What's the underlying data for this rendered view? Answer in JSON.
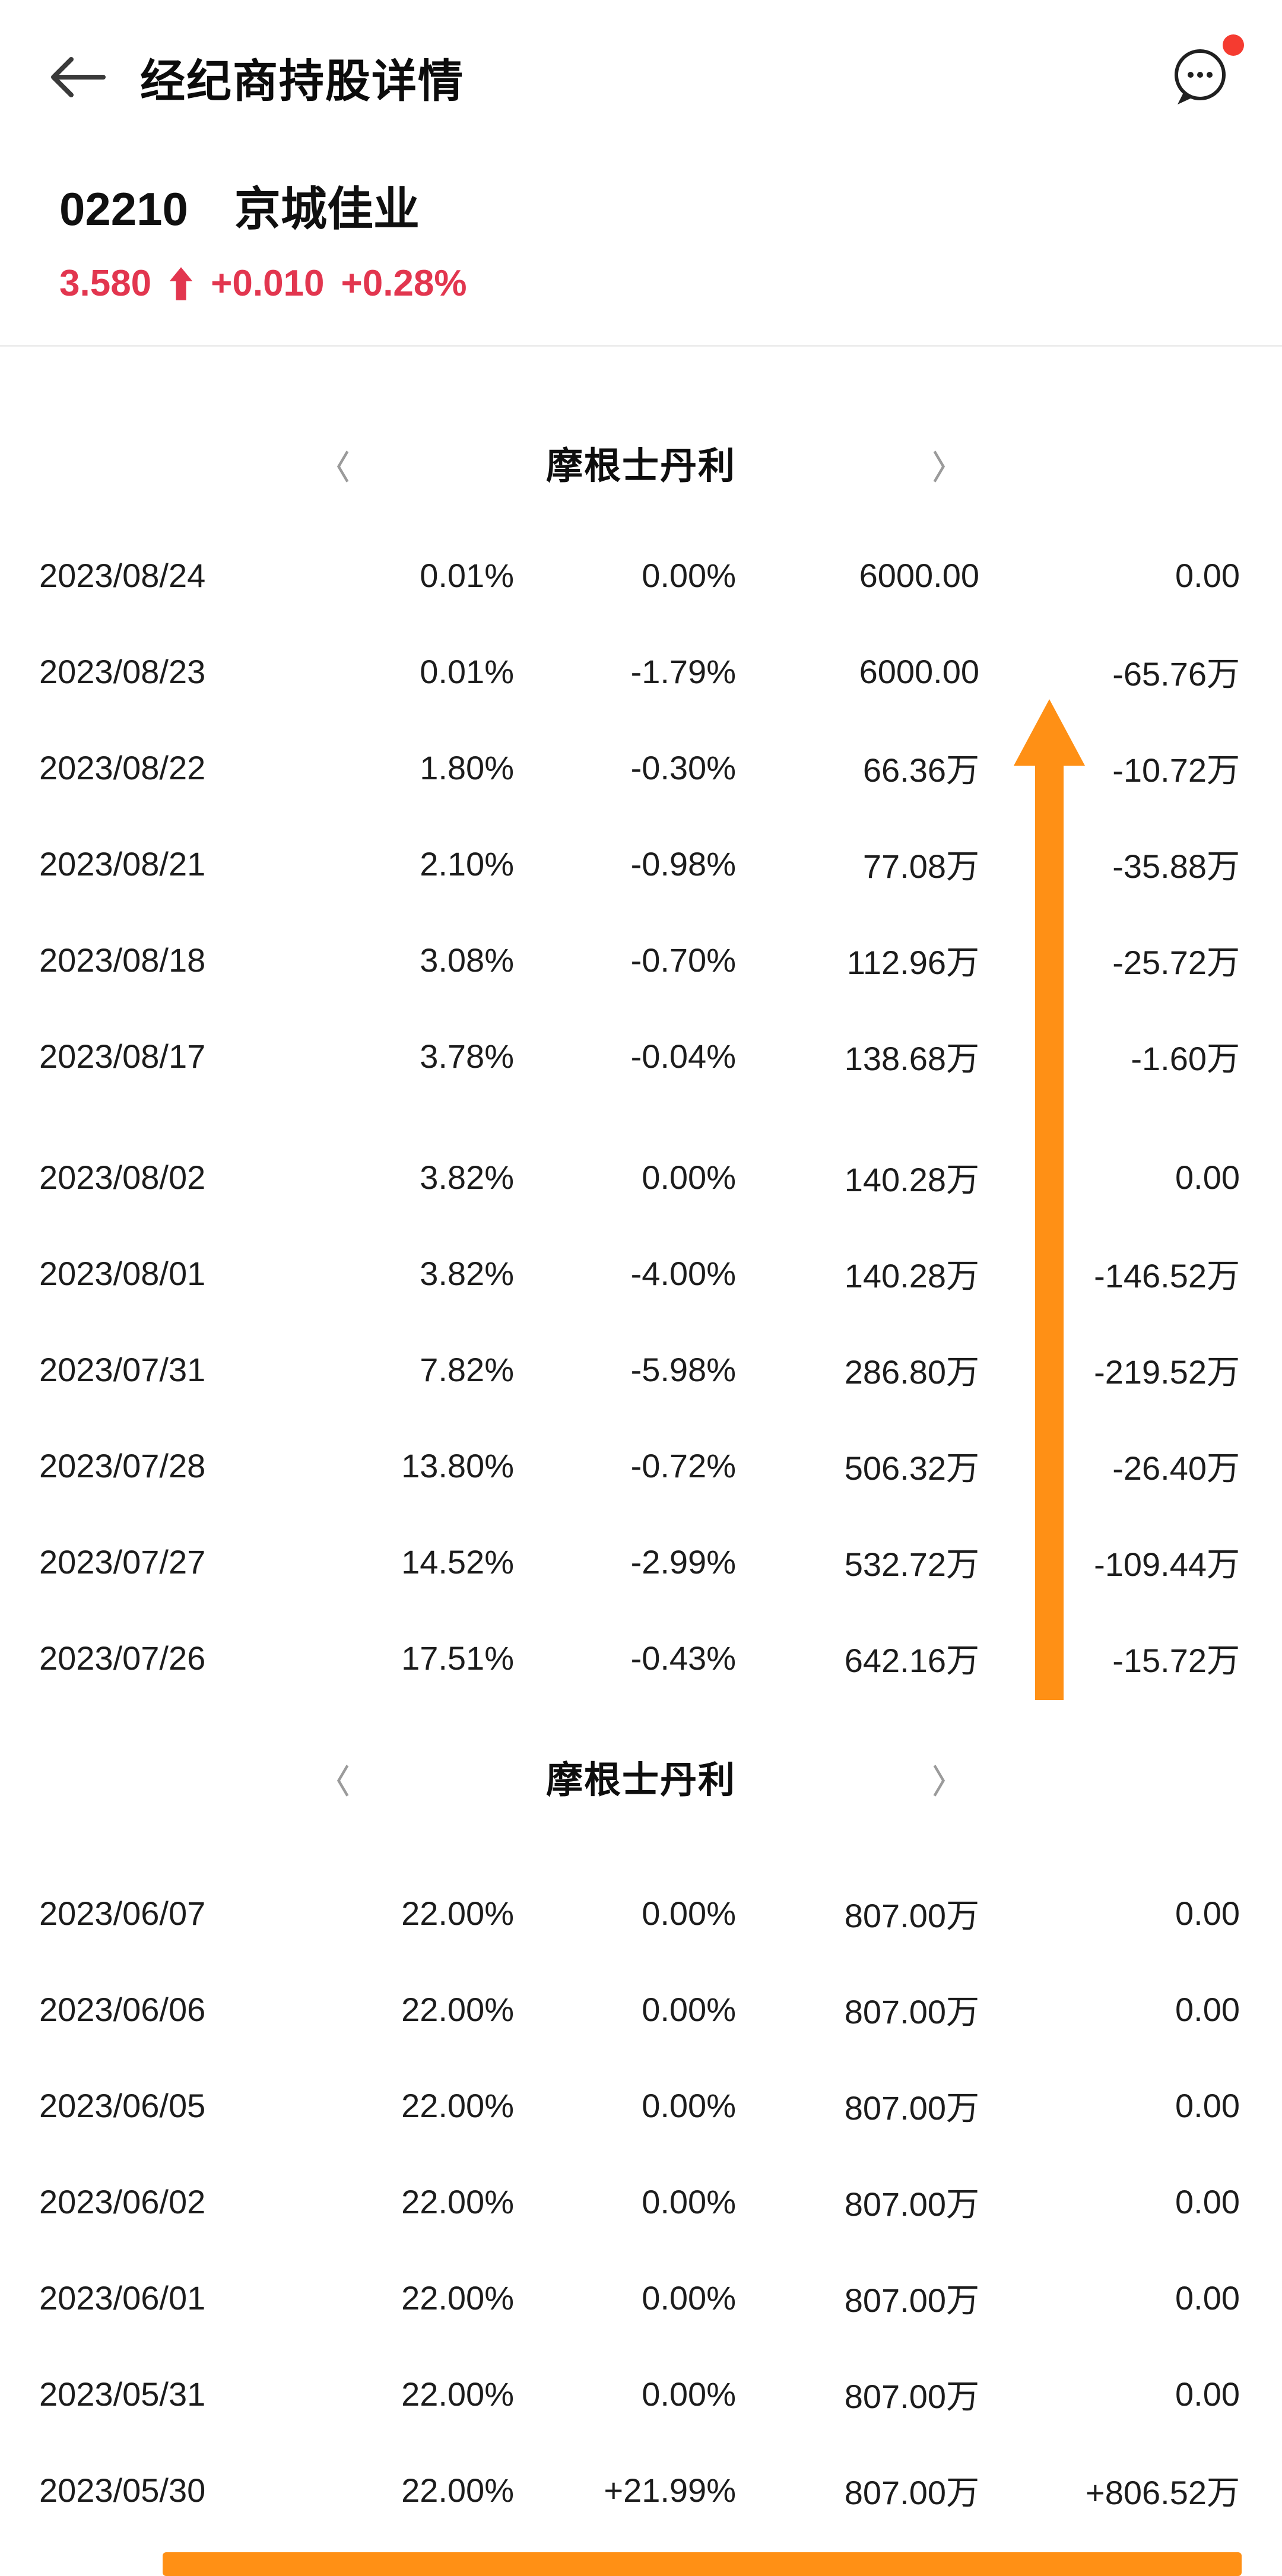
{
  "colors": {
    "accent-orange": "#FF9015",
    "quote-red": "#E2364F",
    "text-dark": "#1B1B1B",
    "chevron-gray": "#9B9B9B",
    "badge-red": "#F53B30"
  },
  "header": {
    "title": "经纪商持股详情"
  },
  "stock": {
    "code": "02210",
    "name": "京城佳业",
    "price": "3.580",
    "change": "+0.010",
    "change_pct": "+0.28%"
  },
  "icons": {
    "back": "back-arrow",
    "chat": "chat-bubble",
    "up": "up-arrow",
    "chevron_left": "chevron-left",
    "chevron_right": "chevron-right"
  },
  "sections": [
    {
      "broker": "摩根士丹利",
      "rows": [
        [
          "2023/08/24",
          "0.01%",
          "0.00%",
          "6000.00",
          "0.00"
        ],
        [
          "2023/08/23",
          "0.01%",
          "-1.79%",
          "6000.00",
          "-65.76万"
        ],
        [
          "2023/08/22",
          "1.80%",
          "-0.30%",
          "66.36万",
          "-10.72万"
        ],
        [
          "2023/08/21",
          "2.10%",
          "-0.98%",
          "77.08万",
          "-35.88万"
        ],
        [
          "2023/08/18",
          "3.08%",
          "-0.70%",
          "112.96万",
          "-25.72万"
        ],
        [
          "2023/08/17",
          "3.78%",
          "-0.04%",
          "138.68万",
          "-1.60万"
        ],
        [
          "2023/08/02",
          "3.82%",
          "0.00%",
          "140.28万",
          "0.00"
        ],
        [
          "2023/08/01",
          "3.82%",
          "-4.00%",
          "140.28万",
          "-146.52万"
        ],
        [
          "2023/07/31",
          "7.82%",
          "-5.98%",
          "286.80万",
          "-219.52万"
        ],
        [
          "2023/07/28",
          "13.80%",
          "-0.72%",
          "506.32万",
          "-26.40万"
        ],
        [
          "2023/07/27",
          "14.52%",
          "-2.99%",
          "532.72万",
          "-109.44万"
        ],
        [
          "2023/07/26",
          "17.51%",
          "-0.43%",
          "642.16万",
          "-15.72万"
        ]
      ]
    },
    {
      "broker": "摩根士丹利",
      "rows": [
        [
          "2023/06/07",
          "22.00%",
          "0.00%",
          "807.00万",
          "0.00"
        ],
        [
          "2023/06/06",
          "22.00%",
          "0.00%",
          "807.00万",
          "0.00"
        ],
        [
          "2023/06/05",
          "22.00%",
          "0.00%",
          "807.00万",
          "0.00"
        ],
        [
          "2023/06/02",
          "22.00%",
          "0.00%",
          "807.00万",
          "0.00"
        ],
        [
          "2023/06/01",
          "22.00%",
          "0.00%",
          "807.00万",
          "0.00"
        ],
        [
          "2023/05/31",
          "22.00%",
          "0.00%",
          "807.00万",
          "0.00"
        ],
        [
          "2023/05/30",
          "22.00%",
          "+21.99%",
          "807.00万",
          "+806.52万"
        ]
      ]
    }
  ]
}
